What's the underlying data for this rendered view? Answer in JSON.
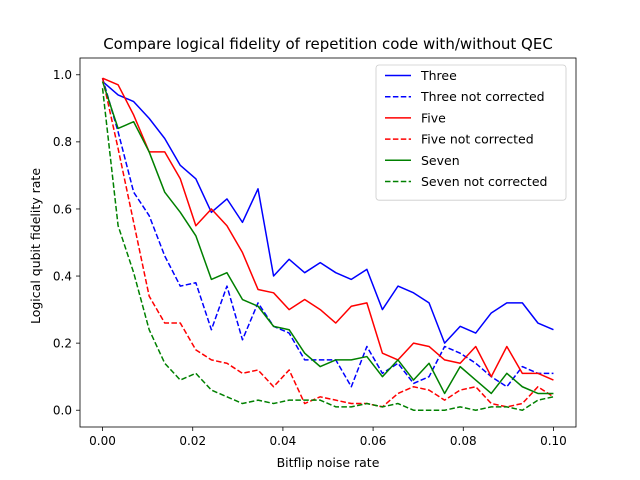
{
  "chart_data": {
    "type": "line",
    "title": "Compare logical fidelity of repetition code with/without QEC",
    "xlabel": "Bitflip noise rate",
    "ylabel": "Logical qubit fidelity rate",
    "xlim": [
      -0.005,
      0.105
    ],
    "ylim": [
      -0.05,
      1.05
    ],
    "xticks": [
      "0.00",
      "0.02",
      "0.04",
      "0.06",
      "0.08",
      "0.10"
    ],
    "yticks": [
      "0.0",
      "0.2",
      "0.4",
      "0.6",
      "0.8",
      "1.0"
    ],
    "grid": false,
    "legend_position": "top-right",
    "x": [
      0.0,
      0.00345,
      0.0069,
      0.01034,
      0.01379,
      0.01724,
      0.02069,
      0.02414,
      0.02759,
      0.03103,
      0.03448,
      0.03793,
      0.04138,
      0.04483,
      0.04828,
      0.05172,
      0.05517,
      0.05862,
      0.06207,
      0.06552,
      0.06897,
      0.07241,
      0.07586,
      0.07931,
      0.08276,
      0.08621,
      0.08966,
      0.0931,
      0.09655,
      0.1
    ],
    "series": [
      {
        "name": "Three",
        "color": "#0000ff",
        "dash": "solid",
        "values": [
          0.98,
          0.94,
          0.92,
          0.87,
          0.81,
          0.73,
          0.69,
          0.59,
          0.63,
          0.56,
          0.66,
          0.4,
          0.45,
          0.41,
          0.44,
          0.41,
          0.39,
          0.42,
          0.3,
          0.37,
          0.35,
          0.32,
          0.2,
          0.25,
          0.23,
          0.29,
          0.32,
          0.32,
          0.26,
          0.24
        ]
      },
      {
        "name": "Three not corrected",
        "color": "#0000ff",
        "dash": "dashed",
        "values": [
          0.99,
          0.83,
          0.65,
          0.58,
          0.46,
          0.37,
          0.38,
          0.24,
          0.37,
          0.21,
          0.32,
          0.25,
          0.23,
          0.15,
          0.15,
          0.15,
          0.07,
          0.19,
          0.11,
          0.14,
          0.08,
          0.1,
          0.19,
          0.17,
          0.14,
          0.1,
          0.07,
          0.13,
          0.11,
          0.11
        ]
      },
      {
        "name": "Five",
        "color": "#ff0000",
        "dash": "solid",
        "values": [
          0.99,
          0.97,
          0.88,
          0.77,
          0.77,
          0.69,
          0.55,
          0.6,
          0.55,
          0.47,
          0.36,
          0.35,
          0.3,
          0.33,
          0.3,
          0.26,
          0.31,
          0.32,
          0.17,
          0.15,
          0.2,
          0.19,
          0.15,
          0.14,
          0.19,
          0.1,
          0.19,
          0.11,
          0.11,
          0.09
        ]
      },
      {
        "name": "Five not corrected",
        "color": "#ff0000",
        "dash": "dashed",
        "values": [
          0.99,
          0.78,
          0.56,
          0.34,
          0.26,
          0.26,
          0.18,
          0.15,
          0.14,
          0.11,
          0.12,
          0.07,
          0.12,
          0.02,
          0.04,
          0.03,
          0.02,
          0.02,
          0.01,
          0.05,
          0.07,
          0.06,
          0.03,
          0.06,
          0.07,
          0.02,
          0.01,
          0.02,
          0.07,
          0.04
        ]
      },
      {
        "name": "Seven",
        "color": "#008000",
        "dash": "solid",
        "values": [
          0.98,
          0.84,
          0.86,
          0.77,
          0.65,
          0.59,
          0.52,
          0.39,
          0.41,
          0.33,
          0.31,
          0.25,
          0.24,
          0.17,
          0.13,
          0.15,
          0.15,
          0.16,
          0.1,
          0.15,
          0.09,
          0.14,
          0.05,
          0.13,
          0.09,
          0.05,
          0.11,
          0.07,
          0.05,
          0.05
        ]
      },
      {
        "name": "Seven not corrected",
        "color": "#008000",
        "dash": "dashed",
        "values": [
          0.96,
          0.55,
          0.41,
          0.24,
          0.14,
          0.09,
          0.11,
          0.06,
          0.04,
          0.02,
          0.03,
          0.02,
          0.03,
          0.03,
          0.03,
          0.01,
          0.01,
          0.02,
          0.01,
          0.02,
          0.0,
          0.0,
          0.0,
          0.01,
          0.0,
          0.01,
          0.01,
          0.0,
          0.03,
          0.04
        ]
      }
    ]
  }
}
